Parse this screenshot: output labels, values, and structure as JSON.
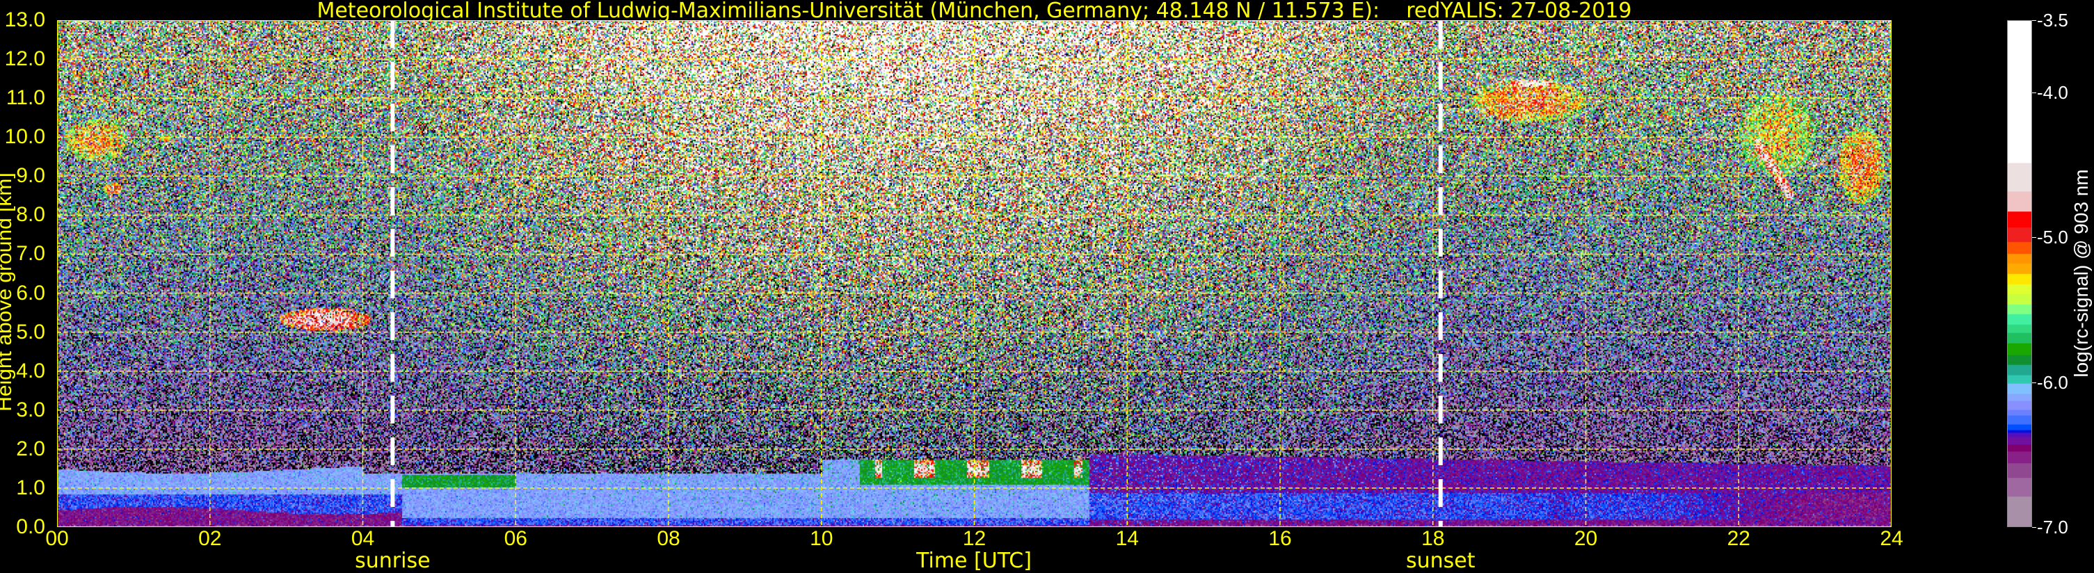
{
  "chart_data": {
    "type": "heatmap",
    "title": "Meteorological Institute of Ludwig-Maximilians-Universität (München, Germany; 48.148 N / 11.573 E):    redYALIS: 27-08-2019",
    "xlabel": "Time [UTC]",
    "ylabel": "Height above ground [km]",
    "xlim": [
      0,
      24
    ],
    "ylim": [
      0,
      13
    ],
    "x_ticks": [
      "00",
      "02",
      "04",
      "06",
      "08",
      "10",
      "12",
      "14",
      "16",
      "18",
      "20",
      "22",
      "24"
    ],
    "y_ticks": [
      "0.0",
      "1.0",
      "2.0",
      "3.0",
      "4.0",
      "5.0",
      "6.0",
      "7.0",
      "8.0",
      "9.0",
      "10.0",
      "11.0",
      "12.0",
      "13.0"
    ],
    "grid": true,
    "grid_color": "#ffff00",
    "colorbar": {
      "label": "log(rc-signal) @ 903 nm",
      "range": [
        -7.0,
        -3.5
      ],
      "ticks": [
        "-3.5",
        "-4.0",
        "-5.0",
        "-6.0",
        "-7.0"
      ],
      "below_range_color": "#000000",
      "stops": [
        {
          "from": -7.0,
          "color": "#a890a8"
        },
        {
          "from": -6.79,
          "color": "#a068a0"
        },
        {
          "from": -6.66,
          "color": "#904890"
        },
        {
          "from": -6.56,
          "color": "#882088"
        },
        {
          "from": -6.48,
          "color": "#800070"
        },
        {
          "from": -6.43,
          "color": "#7010a0"
        },
        {
          "from": -6.38,
          "color": "#5010c0"
        },
        {
          "from": -6.35,
          "color": "#0010e0"
        },
        {
          "from": -6.33,
          "color": "#0050ff"
        },
        {
          "from": -6.29,
          "color": "#4070ff"
        },
        {
          "from": -6.23,
          "color": "#6a80ff"
        },
        {
          "from": -6.19,
          "color": "#8890ff"
        },
        {
          "from": -6.13,
          "color": "#88a8ff"
        },
        {
          "from": -6.08,
          "color": "#80c0ff"
        },
        {
          "from": -6.01,
          "color": "#30c8b0"
        },
        {
          "from": -5.95,
          "color": "#20a890"
        },
        {
          "from": -5.88,
          "color": "#109030"
        },
        {
          "from": -5.81,
          "color": "#1aa800"
        },
        {
          "from": -5.73,
          "color": "#20c060"
        },
        {
          "from": -5.66,
          "color": "#30d880"
        },
        {
          "from": -5.6,
          "color": "#40f0a0"
        },
        {
          "from": -5.53,
          "color": "#80ff80"
        },
        {
          "from": -5.46,
          "color": "#c8ff40"
        },
        {
          "from": -5.39,
          "color": "#e0ff30"
        },
        {
          "from": -5.32,
          "color": "#ffe800"
        },
        {
          "from": -5.25,
          "color": "#ffaa00"
        },
        {
          "from": -5.18,
          "color": "#ff9500"
        },
        {
          "from": -5.11,
          "color": "#ff5500"
        },
        {
          "from": -5.03,
          "color": "#f02020"
        },
        {
          "from": -4.93,
          "color": "#ff0000"
        },
        {
          "from": -4.82,
          "color": "#f0c4c4"
        },
        {
          "from": -4.68,
          "color": "#ece0e0"
        },
        {
          "from": -4.48,
          "color": "#ffffff"
        }
      ]
    },
    "markers": [
      {
        "label": "sunrise",
        "time_h": 4.39,
        "color": "#ffffff"
      },
      {
        "label": "sunset",
        "time_h": 18.1,
        "color": "#ffffff"
      }
    ],
    "features": [
      {
        "kind": "cirrus",
        "t": [
          0.1,
          0.9
        ],
        "h": [
          9.4,
          10.5
        ],
        "value": -5.1
      },
      {
        "kind": "cirrus",
        "t": [
          0.6,
          0.85
        ],
        "h": [
          8.55,
          8.85
        ],
        "value": -4.9
      },
      {
        "kind": "cirrus",
        "t": [
          1.3,
          1.5
        ],
        "h": [
          9.9,
          10.1
        ],
        "value": -5.2
      },
      {
        "kind": "mid-level cloud",
        "t": [
          2.9,
          4.1
        ],
        "h": [
          5.05,
          5.65
        ],
        "value": -4.6
      },
      {
        "kind": "cirrus",
        "t": [
          18.5,
          20.0
        ],
        "h": [
          10.4,
          11.5
        ],
        "value": -5.0
      },
      {
        "kind": "cirrus",
        "t": [
          19.0,
          19.6
        ],
        "h": [
          11.3,
          11.5
        ],
        "value": -4.4
      },
      {
        "kind": "cirrus",
        "t": [
          22.0,
          23.0
        ],
        "h": [
          9.0,
          11.2
        ],
        "value": -5.3
      },
      {
        "kind": "cirrus streak",
        "t": [
          22.2,
          22.7
        ],
        "h": [
          8.4,
          10.0
        ],
        "value": -4.5
      },
      {
        "kind": "cirrus",
        "t": [
          23.3,
          23.9
        ],
        "h": [
          8.3,
          10.3
        ],
        "value": -5.0
      },
      {
        "kind": "boundary-layer cumulus",
        "t": [
          10.7,
          13.4
        ],
        "h": [
          1.3,
          1.8
        ],
        "value": -4.5
      }
    ]
  }
}
